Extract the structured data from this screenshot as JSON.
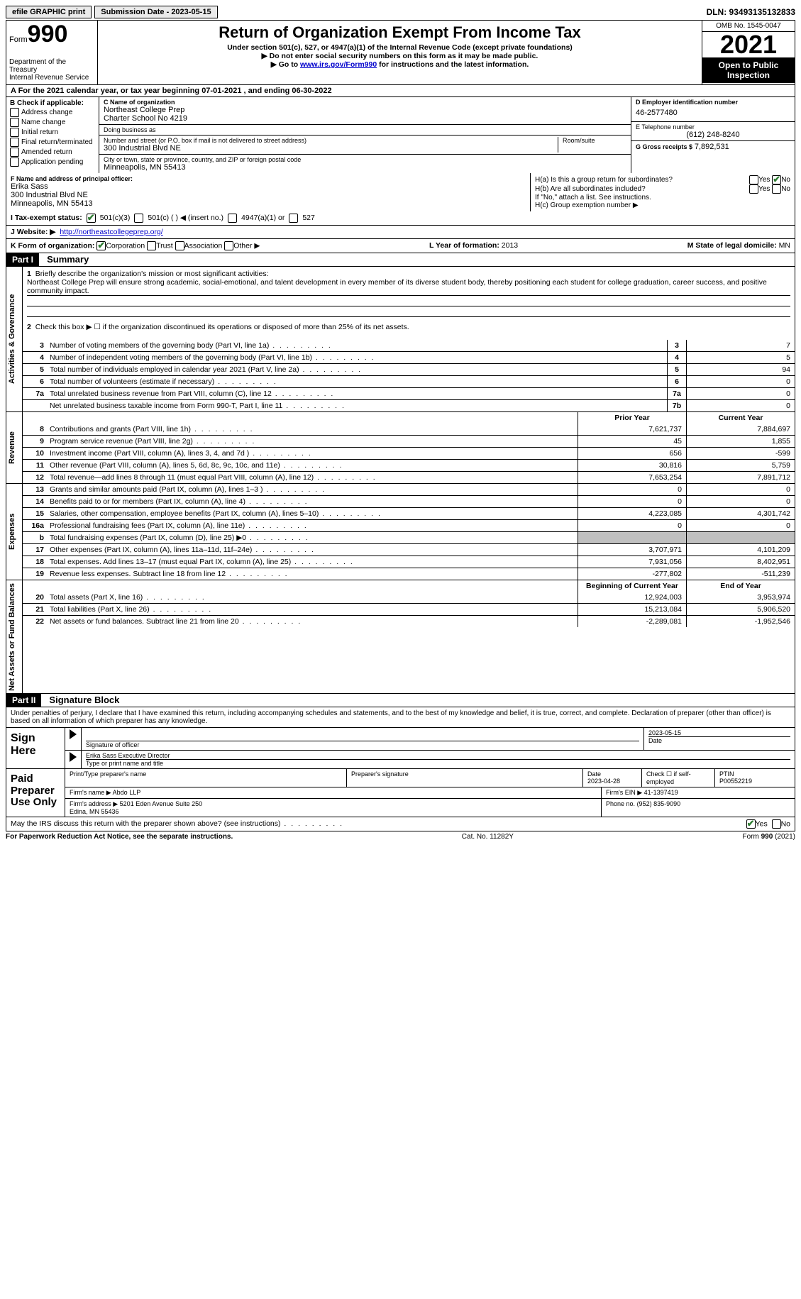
{
  "topbar": {
    "efile_label": "efile GRAPHIC print",
    "submission_label": "Submission Date - 2023-05-15",
    "dln_label": "DLN: 93493135132833"
  },
  "header": {
    "form_word": "Form",
    "form_num": "990",
    "dept": "Department of the Treasury\nInternal Revenue Service",
    "title": "Return of Organization Exempt From Income Tax",
    "subtitle": "Under section 501(c), 527, or 4947(a)(1) of the Internal Revenue Code (except private foundations)",
    "inst1": "▶ Do not enter social security numbers on this form as it may be made public.",
    "inst2_pre": "▶ Go to ",
    "inst2_link": "www.irs.gov/Form990",
    "inst2_post": " for instructions and the latest information.",
    "omb": "OMB No. 1545-0047",
    "year": "2021",
    "open": "Open to Public Inspection"
  },
  "row_a": "A For the 2021 calendar year, or tax year beginning 07-01-2021   , and ending 06-30-2022",
  "col_b": {
    "heading": "B Check if applicable:",
    "items": [
      "Address change",
      "Name change",
      "Initial return",
      "Final return/terminated",
      "Amended return",
      "Application pending"
    ]
  },
  "c_block": {
    "name_lbl": "C Name of organization",
    "name_val": "Northeast College Prep\nCharter School No 4219",
    "dba_lbl": "Doing business as",
    "addr_lbl": "Number and street (or P.O. box if mail is not delivered to street address)",
    "addr_val": "300 Industrial Blvd NE",
    "room_lbl": "Room/suite",
    "city_lbl": "City or town, state or province, country, and ZIP or foreign postal code",
    "city_val": "Minneapolis, MN  55413"
  },
  "d_block": {
    "ein_lbl": "D Employer identification number",
    "ein_val": "46-2577480",
    "phone_lbl": "E Telephone number",
    "phone_val": "(612) 248-8240",
    "gross_lbl": "G Gross receipts $",
    "gross_val": "7,892,531"
  },
  "f_block": {
    "lbl": "F Name and address of principal officer:",
    "name": "Erika Sass",
    "addr1": "300 Industrial Blvd NE",
    "addr2": "Minneapolis, MN  55413"
  },
  "h_block": {
    "ha_lbl": "H(a)  Is this a group return for subordinates?",
    "hb_lbl": "H(b)  Are all subordinates included?",
    "yes": "Yes",
    "no": "No",
    "note": "If \"No,\" attach a list. See instructions.",
    "hc_lbl": "H(c)  Group exemption number ▶"
  },
  "i_row": {
    "lbl": "I   Tax-exempt status:",
    "o1": "501(c)(3)",
    "o2": "501(c) (  ) ◀ (insert no.)",
    "o3": "4947(a)(1) or",
    "o4": "527"
  },
  "j_row": {
    "lbl": "J  Website: ▶",
    "url": "http://northeastcollegeprep.org/"
  },
  "k_row": {
    "lbl": "K Form of organization:",
    "o1": "Corporation",
    "o2": "Trust",
    "o3": "Association",
    "o4": "Other ▶",
    "l_lbl": "L Year of formation:",
    "l_val": "2013",
    "m_lbl": "M State of legal domicile:",
    "m_val": "MN"
  },
  "part1": {
    "hdr": "Part I",
    "title": "Summary",
    "l1_lbl": "Briefly describe the organization's mission or most significant activities:",
    "l1_val": "Northeast College Prep will ensure strong academic, social-emotional, and talent development in every member of its diverse student body, thereby positioning each student for college graduation, career success, and positive community impact.",
    "l2": "Check this box ▶ ☐  if the organization discontinued its operations or disposed of more than 25% of its net assets.",
    "vlabel_ag": "Activities & Governance",
    "vlabel_rev": "Revenue",
    "vlabel_exp": "Expenses",
    "vlabel_na": "Net Assets or Fund Balances",
    "rows_ag": [
      {
        "n": "3",
        "d": "Number of voting members of the governing body (Part VI, line 1a)",
        "b": "3",
        "v": "7"
      },
      {
        "n": "4",
        "d": "Number of independent voting members of the governing body (Part VI, line 1b)",
        "b": "4",
        "v": "5"
      },
      {
        "n": "5",
        "d": "Total number of individuals employed in calendar year 2021 (Part V, line 2a)",
        "b": "5",
        "v": "94"
      },
      {
        "n": "6",
        "d": "Total number of volunteers (estimate if necessary)",
        "b": "6",
        "v": "0"
      },
      {
        "n": "7a",
        "d": "Total unrelated business revenue from Part VIII, column (C), line 12",
        "b": "7a",
        "v": "0"
      },
      {
        "n": "",
        "d": "Net unrelated business taxable income from Form 990-T, Part I, line 11",
        "b": "7b",
        "v": "0"
      }
    ],
    "hdr_prior": "Prior Year",
    "hdr_curr": "Current Year",
    "rows_rev": [
      {
        "n": "8",
        "d": "Contributions and grants (Part VIII, line 1h)",
        "p": "7,621,737",
        "c": "7,884,697"
      },
      {
        "n": "9",
        "d": "Program service revenue (Part VIII, line 2g)",
        "p": "45",
        "c": "1,855"
      },
      {
        "n": "10",
        "d": "Investment income (Part VIII, column (A), lines 3, 4, and 7d )",
        "p": "656",
        "c": "-599"
      },
      {
        "n": "11",
        "d": "Other revenue (Part VIII, column (A), lines 5, 6d, 8c, 9c, 10c, and 11e)",
        "p": "30,816",
        "c": "5,759"
      },
      {
        "n": "12",
        "d": "Total revenue—add lines 8 through 11 (must equal Part VIII, column (A), line 12)",
        "p": "7,653,254",
        "c": "7,891,712"
      }
    ],
    "rows_exp": [
      {
        "n": "13",
        "d": "Grants and similar amounts paid (Part IX, column (A), lines 1–3 )",
        "p": "0",
        "c": "0"
      },
      {
        "n": "14",
        "d": "Benefits paid to or for members (Part IX, column (A), line 4)",
        "p": "0",
        "c": "0"
      },
      {
        "n": "15",
        "d": "Salaries, other compensation, employee benefits (Part IX, column (A), lines 5–10)",
        "p": "4,223,085",
        "c": "4,301,742"
      },
      {
        "n": "16a",
        "d": "Professional fundraising fees (Part IX, column (A), line 11e)",
        "p": "0",
        "c": "0"
      },
      {
        "n": "b",
        "d": "Total fundraising expenses (Part IX, column (D), line 25) ▶0",
        "p": "",
        "c": "",
        "shade": true
      },
      {
        "n": "17",
        "d": "Other expenses (Part IX, column (A), lines 11a–11d, 11f–24e)",
        "p": "3,707,971",
        "c": "4,101,209"
      },
      {
        "n": "18",
        "d": "Total expenses. Add lines 13–17 (must equal Part IX, column (A), line 25)",
        "p": "7,931,056",
        "c": "8,402,951"
      },
      {
        "n": "19",
        "d": "Revenue less expenses. Subtract line 18 from line 12",
        "p": "-277,802",
        "c": "-511,239"
      }
    ],
    "hdr_boy": "Beginning of Current Year",
    "hdr_eoy": "End of Year",
    "rows_na": [
      {
        "n": "20",
        "d": "Total assets (Part X, line 16)",
        "p": "12,924,003",
        "c": "3,953,974"
      },
      {
        "n": "21",
        "d": "Total liabilities (Part X, line 26)",
        "p": "15,213,084",
        "c": "5,906,520"
      },
      {
        "n": "22",
        "d": "Net assets or fund balances. Subtract line 21 from line 20",
        "p": "-2,289,081",
        "c": "-1,952,546"
      }
    ]
  },
  "part2": {
    "hdr": "Part II",
    "title": "Signature Block",
    "decl": "Under penalties of perjury, I declare that I have examined this return, including accompanying schedules and statements, and to the best of my knowledge and belief, it is true, correct, and complete. Declaration of preparer (other than officer) is based on all information of which preparer has any knowledge."
  },
  "sign": {
    "left": "Sign Here",
    "sig_lbl": "Signature of officer",
    "date1": "2023-05-15",
    "date_lbl": "Date",
    "name": "Erika Sass  Executive Director",
    "name_lbl": "Type or print name and title"
  },
  "paid": {
    "left": "Paid Preparer Use Only",
    "c1": "Print/Type preparer's name",
    "c2": "Preparer's signature",
    "c3_lbl": "Date",
    "c3_val": "2023-04-28",
    "c4_lbl": "Check ☐ if self-employed",
    "c5_lbl": "PTIN",
    "c5_val": "P00552219",
    "firm_name_lbl": "Firm's name    ▶",
    "firm_name": "Abdo LLP",
    "firm_ein_lbl": "Firm's EIN ▶",
    "firm_ein": "41-1397419",
    "firm_addr_lbl": "Firm's address ▶",
    "firm_addr": "5201 Eden Avenue Suite 250\nEdina, MN  55436",
    "phone_lbl": "Phone no.",
    "phone": "(952) 835-9090"
  },
  "discuss": {
    "q": "May the IRS discuss this return with the preparer shown above? (see instructions)",
    "yes": "Yes",
    "no": "No"
  },
  "footer": {
    "left": "For Paperwork Reduction Act Notice, see the separate instructions.",
    "mid": "Cat. No. 11282Y",
    "right": "Form 990 (2021)"
  }
}
